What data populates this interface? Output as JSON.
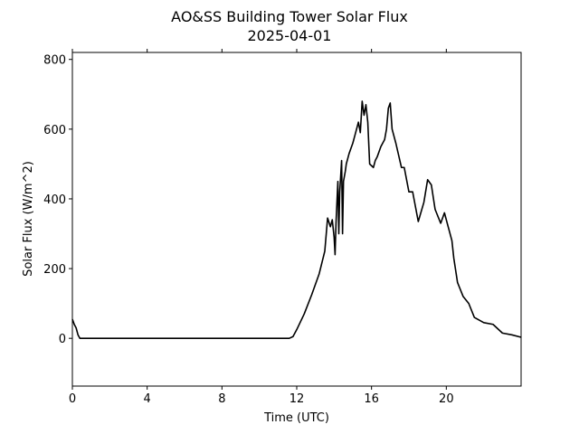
{
  "chart_data": {
    "type": "line",
    "title": "AO&SS Building Tower Solar Flux",
    "subtitle": "2025-04-01",
    "xlabel": "Time (UTC)",
    "ylabel": "Solar Flux (W/m^2)",
    "xlim": [
      0,
      24
    ],
    "xticks": [
      0,
      4,
      8,
      12,
      16,
      20
    ],
    "ylim": [
      -137,
      820
    ],
    "yticks": [
      0,
      200,
      400,
      600,
      800
    ],
    "series": [
      {
        "name": "Solar Flux",
        "color": "#000000",
        "x": [
          0,
          0.1,
          0.2,
          0.3,
          0.4,
          11.6,
          11.8,
          12.0,
          12.4,
          12.8,
          13.2,
          13.5,
          13.65,
          13.8,
          13.9,
          14.0,
          14.05,
          14.1,
          14.2,
          14.25,
          14.3,
          14.4,
          14.45,
          14.5,
          14.6,
          14.65,
          14.8,
          15.0,
          15.1,
          15.2,
          15.3,
          15.4,
          15.5,
          15.6,
          15.7,
          15.8,
          15.9,
          16.1,
          16.2,
          16.3,
          16.5,
          16.7,
          16.8,
          16.9,
          17.0,
          17.1,
          17.3,
          17.6,
          17.75,
          18.0,
          18.2,
          18.5,
          18.8,
          19.0,
          19.2,
          19.4,
          19.7,
          19.9,
          20.1,
          20.3,
          20.4,
          20.6,
          20.9,
          21.2,
          21.5,
          22.0,
          22.5,
          23.0,
          23.5,
          24.0
        ],
        "values": [
          55,
          40,
          30,
          10,
          0,
          0,
          5,
          25,
          70,
          125,
          185,
          250,
          345,
          320,
          340,
          290,
          240,
          330,
          450,
          300,
          420,
          510,
          300,
          450,
          480,
          500,
          530,
          560,
          580,
          600,
          620,
          590,
          680,
          640,
          670,
          620,
          500,
          490,
          510,
          520,
          550,
          570,
          600,
          660,
          675,
          600,
          560,
          490,
          490,
          420,
          420,
          335,
          390,
          455,
          440,
          370,
          330,
          360,
          320,
          280,
          230,
          160,
          120,
          100,
          60,
          45,
          40,
          15,
          10,
          3
        ]
      }
    ]
  }
}
